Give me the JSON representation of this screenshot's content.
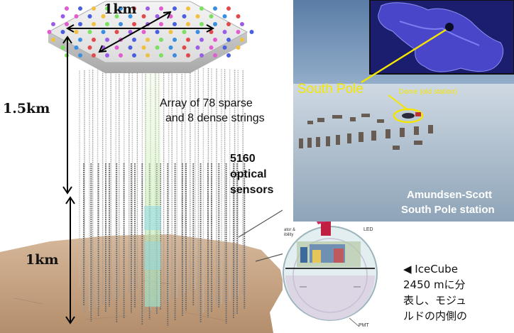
{
  "labels": {
    "width_km": "1km",
    "depth_top": "1.5km",
    "depth_bottom": "1km",
    "array_line1": "Array of 78 sparse",
    "array_line2": "and 8 dense strings",
    "sensors_count": "5160",
    "sensors_line2": "optical",
    "sensors_line3": "sensors"
  },
  "photo": {
    "south_pole": "South Pole",
    "dome": "Dome (old station)",
    "station_line1": "Amundsen-Scott",
    "station_line2": "South Pole station"
  },
  "module": {
    "led": "LED",
    "pmt": "PMT",
    "side_label1": "ator &",
    "side_label2": "ibility"
  },
  "caption": {
    "line1": "◀ IceCube",
    "line2": "2450 mに分",
    "line3": "表し、モジュ",
    "line4": "ルドの内側の"
  },
  "colors": {
    "ice_block": "#e8e8e8",
    "bedrock": "#c9a78a",
    "south_pole_text": "#f5e600",
    "photo_sky": "#6f8fb3",
    "antarctica_map": "#4a46c9"
  }
}
